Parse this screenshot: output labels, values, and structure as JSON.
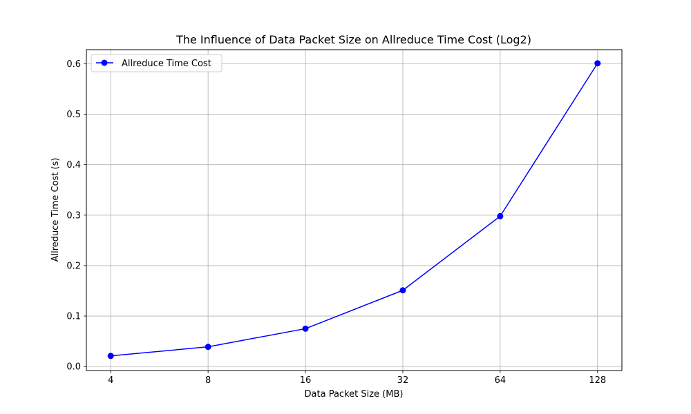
{
  "chart_data": {
    "type": "line",
    "title": "The Influence of Data Packet Size on Allreduce Time Cost (Log2)",
    "xlabel": "Data Packet Size (MB)",
    "ylabel": "Allreduce Time Cost (s)",
    "x_scale": "log2",
    "x": [
      4,
      8,
      16,
      32,
      64,
      128
    ],
    "x_tick_labels": [
      "4",
      "8",
      "16",
      "32",
      "64",
      "128"
    ],
    "y_ticks": [
      0.0,
      0.1,
      0.2,
      0.3,
      0.4,
      0.5,
      0.6
    ],
    "y_tick_labels": [
      "0.0",
      "0.1",
      "0.2",
      "0.3",
      "0.4",
      "0.5",
      "0.6"
    ],
    "ylim": [
      -0.008,
      0.628
    ],
    "grid": true,
    "legend_position": "top-left",
    "series": [
      {
        "name": "Allreduce Time Cost",
        "color": "#0000ff",
        "marker": "circle",
        "values": [
          0.021,
          0.039,
          0.075,
          0.151,
          0.298,
          0.601
        ]
      }
    ]
  }
}
